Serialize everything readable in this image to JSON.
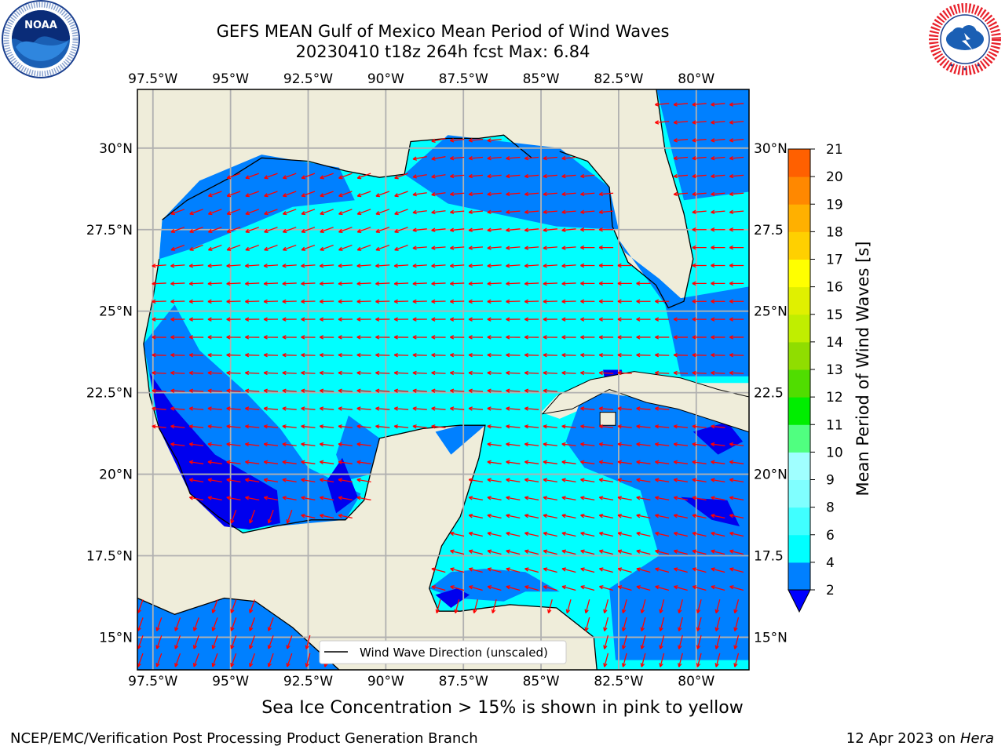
{
  "header": {
    "title_line1": "GEFS MEAN Gulf of Mexico Mean Period of Wind Waves",
    "title_line2": "20230410 t18z 264h fcst   Max: 6.84"
  },
  "logos": {
    "noaa": {
      "center_text": "NOAA",
      "ring_text": "NATIONAL OCEANIC AND ATMOSPHERIC ADMINISTRATION · U.S. DEPARTMENT OF COMMERCE"
    },
    "nws": {
      "ring_text": "NATIONAL WEATHER SERVICE"
    }
  },
  "map": {
    "lon_labels": [
      "97.5°W",
      "95°W",
      "92.5°W",
      "90°W",
      "87.5°W",
      "85°W",
      "82.5°W",
      "80°W"
    ],
    "lat_labels_left": [
      "30°N",
      "27.5°N",
      "25°N",
      "22.5°N",
      "20°N",
      "17.5°N",
      "15°N"
    ],
    "lat_labels_right": [
      "30°N",
      "27.5",
      "25°N",
      "22.5",
      "20°N",
      "17.5",
      "15°N"
    ],
    "lon_range": [
      -98,
      -78.3
    ],
    "lat_range": [
      14.0,
      31.8
    ],
    "legend_label": "Wind Wave Direction (unscaled)",
    "colors": {
      "land": "#efedda",
      "ocean_blue": "#0080ff",
      "ocean_cyan": "#00ffff",
      "ocean_navy": "#0000ee",
      "arrows": "#ff0000"
    }
  },
  "colorbar": {
    "title": "Mean Period of Wind Waves [s]",
    "ticks": [
      "2",
      "4",
      "6",
      "8",
      "9",
      "10",
      "11",
      "12",
      "13",
      "14",
      "15",
      "16",
      "17",
      "18",
      "19",
      "20",
      "21"
    ],
    "colors": [
      "#0080ff",
      "#00ffff",
      "#40ffff",
      "#80ffff",
      "#a0ffff",
      "#50ff80",
      "#00ee00",
      "#50dd00",
      "#90dd00",
      "#c0ee00",
      "#e0f000",
      "#ffff00",
      "#ffd000",
      "#ffb000",
      "#ff8800",
      "#ff6000",
      "#ff3000",
      "#ff0000"
    ],
    "extend_color": "#0000ff"
  },
  "caption": "Sea Ice Concentration > 15% is shown in pink to yellow",
  "footer": {
    "left": "NCEP/EMC/Verification Post Processing Product Generation Branch",
    "right_date": "12 Apr 2023 on ",
    "right_machine": "Hera"
  }
}
